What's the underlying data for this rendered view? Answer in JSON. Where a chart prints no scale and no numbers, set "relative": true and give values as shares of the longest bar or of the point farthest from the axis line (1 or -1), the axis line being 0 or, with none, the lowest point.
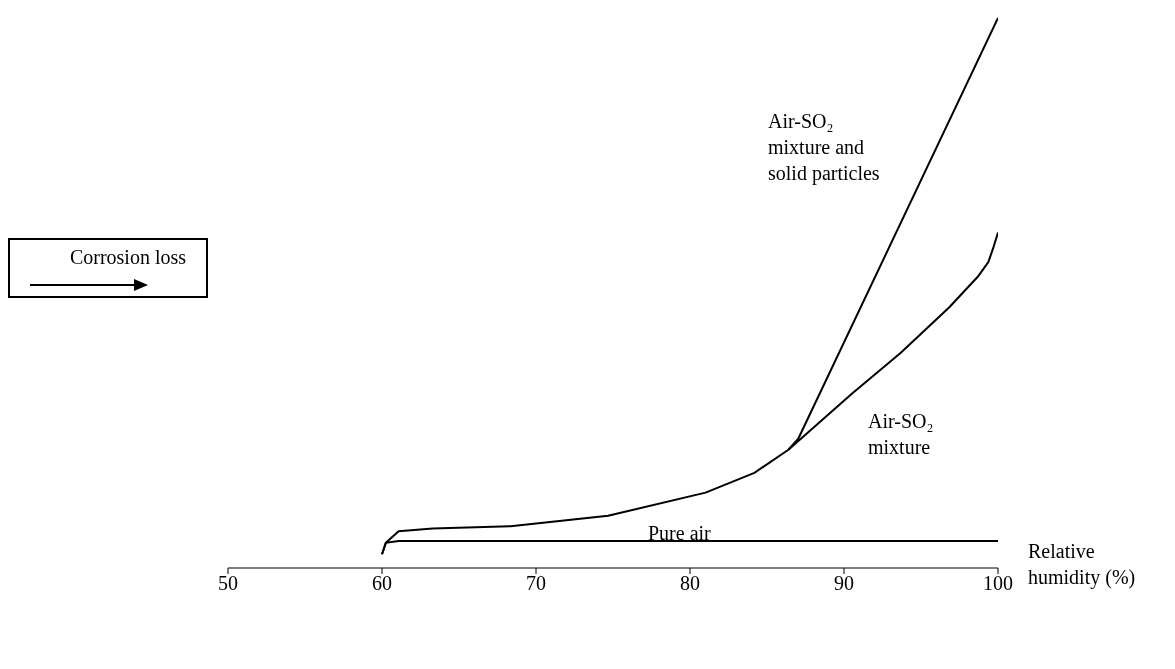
{
  "chart_data": {
    "type": "line",
    "ylabel": "Corrosion loss",
    "xlabel": "Relative humidity (%)",
    "relative": true,
    "xlim": [
      50,
      100
    ],
    "xticks": [
      50,
      60,
      70,
      80,
      90,
      100
    ],
    "marker": "none",
    "line_style": "solid",
    "series": [
      {
        "name": "Air-SO₂ mixture and solid particles",
        "color": "#000000",
        "x": [
          86.39,
          87.03,
          100
        ],
        "values": [
          0.215,
          0.235,
          1.0
        ]
      },
      {
        "name": "Air-SO₂ mixture",
        "color": "#000000",
        "x": [
          60,
          60.25,
          61.08,
          63.29,
          68.35,
          74.68,
          81.01,
          84.18,
          86.39,
          90.51,
          93.67,
          96.84,
          98.73,
          99.37,
          99.68,
          100
        ],
        "values": [
          0.025,
          0.046,
          0.067,
          0.072,
          0.076,
          0.095,
          0.137,
          0.173,
          0.215,
          0.317,
          0.391,
          0.474,
          0.531,
          0.556,
          0.581,
          0.61
        ]
      },
      {
        "name": "Pure air",
        "color": "#000000",
        "x": [
          60,
          60.25,
          61.08,
          100
        ],
        "values": [
          0.025,
          0.046,
          0.049,
          0.049
        ]
      }
    ]
  }
}
